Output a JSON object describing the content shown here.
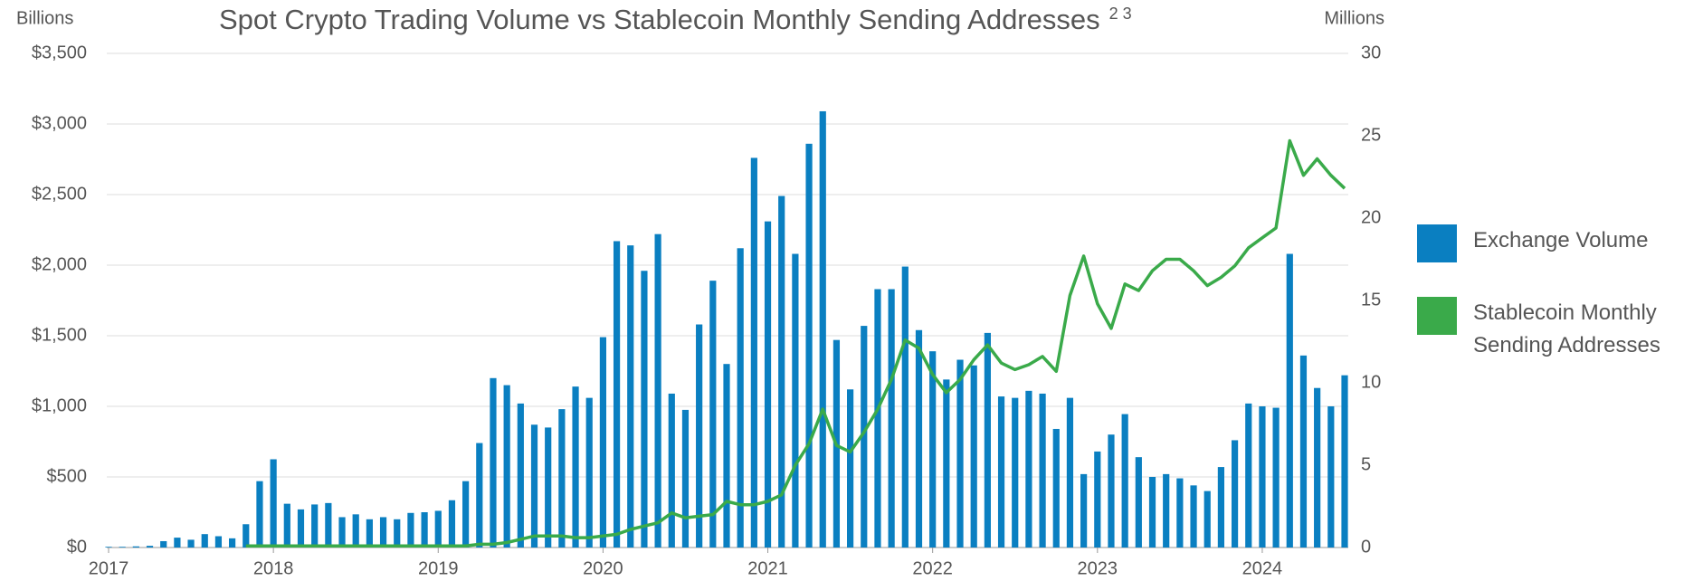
{
  "chart_data": {
    "type": "bar-line",
    "title": "Spot Crypto Trading Volume vs Stablecoin Monthly Sending Addresses",
    "title_note": "2 3",
    "y_unit": "Billions",
    "y2_unit": "Millions",
    "categories": [
      "2017",
      null,
      null,
      null,
      null,
      null,
      null,
      null,
      null,
      null,
      null,
      null,
      "2018",
      null,
      null,
      null,
      null,
      null,
      null,
      null,
      null,
      null,
      null,
      null,
      "2019",
      null,
      null,
      null,
      null,
      null,
      null,
      null,
      null,
      null,
      null,
      null,
      "2020",
      null,
      null,
      null,
      null,
      null,
      null,
      null,
      null,
      null,
      null,
      null,
      "2021",
      null,
      null,
      null,
      null,
      null,
      null,
      null,
      null,
      null,
      null,
      null,
      "2022",
      null,
      null,
      null,
      null,
      null,
      null,
      null,
      null,
      null,
      null,
      null,
      "2023",
      null,
      null,
      null,
      null,
      null,
      null,
      null,
      null,
      null,
      null,
      null,
      "2024",
      null,
      null,
      null,
      null,
      null,
      null
    ],
    "series": [
      {
        "name": "Exchange Volume",
        "color": "#0a7fc1",
        "values": [
          5,
          5,
          8,
          12,
          45,
          70,
          55,
          95,
          80,
          65,
          165,
          470,
          625,
          310,
          270,
          305,
          315,
          215,
          235,
          200,
          215,
          200,
          245,
          250,
          260,
          335,
          470,
          740,
          1200,
          1150,
          1020,
          870,
          850,
          980,
          1140,
          1060,
          1490,
          2170,
          2140,
          1960,
          2220,
          1090,
          975,
          1580,
          1890,
          1300,
          2120,
          2760,
          2310,
          2490,
          2080,
          2860,
          3090,
          1470,
          1120,
          1570,
          1830,
          1830,
          1990,
          1540,
          1390,
          1190,
          1330,
          1290,
          1520,
          1070,
          1060,
          1110,
          1090,
          840,
          1060,
          520,
          680,
          800,
          945,
          640,
          500,
          520,
          490,
          440,
          400,
          570,
          760,
          1020,
          1000,
          990,
          2080,
          1360,
          1130,
          1000,
          1220
        ]
      },
      {
        "name": "Stablecoin Monthly Sending Addresses",
        "color": "#3aaa4a",
        "axis": "y2",
        "values": [
          null,
          null,
          null,
          null,
          null,
          null,
          null,
          null,
          null,
          null,
          0.1,
          0.1,
          0.1,
          0.1,
          0.1,
          0.1,
          0.1,
          0.1,
          0.1,
          0.1,
          0.1,
          0.1,
          0.1,
          0.1,
          0.1,
          0.1,
          0.1,
          0.2,
          0.2,
          0.3,
          0.5,
          0.7,
          0.7,
          0.7,
          0.6,
          0.6,
          0.7,
          0.8,
          1.1,
          1.3,
          1.5,
          2.1,
          1.8,
          1.9,
          2.0,
          2.8,
          2.6,
          2.6,
          2.8,
          3.2,
          5.0,
          6.3,
          8.4,
          6.2,
          5.8,
          7.0,
          8.4,
          10.2,
          12.6,
          12.1,
          10.5,
          9.4,
          10.2,
          11.4,
          12.3,
          11.2,
          10.8,
          11.1,
          11.6,
          10.7,
          15.3,
          17.7,
          14.8,
          13.3,
          16.0,
          15.6,
          16.8,
          17.5,
          17.5,
          16.8,
          15.9,
          16.4,
          17.1,
          18.2,
          18.8,
          19.4,
          24.7,
          22.6,
          23.6,
          22.6,
          21.8
        ]
      }
    ],
    "ylim": [
      0,
      3500
    ],
    "yticks": [
      {
        "value": 0,
        "label": "$0"
      },
      {
        "value": 500,
        "label": "$500"
      },
      {
        "value": 1000,
        "label": "$1,000"
      },
      {
        "value": 1500,
        "label": "$1,500"
      },
      {
        "value": 2000,
        "label": "$2,000"
      },
      {
        "value": 2500,
        "label": "$2,500"
      },
      {
        "value": 3000,
        "label": "$3,000"
      },
      {
        "value": 3500,
        "label": "$3,500"
      }
    ],
    "y2lim": [
      0,
      30
    ],
    "y2ticks": [
      0,
      5,
      10,
      15,
      20,
      25,
      30
    ],
    "grid": true
  }
}
